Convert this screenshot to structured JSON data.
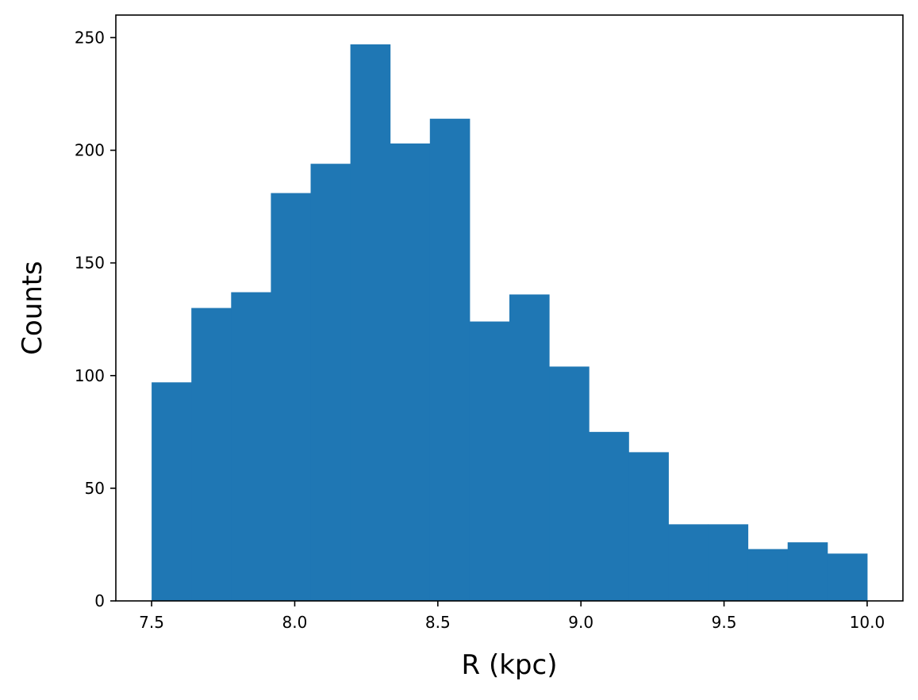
{
  "chart_data": {
    "type": "bar",
    "subtype": "histogram",
    "title": "",
    "xlabel": "R (kpc)",
    "ylabel": "Counts",
    "bin_edges": [
      7.5,
      7.6389,
      7.7778,
      7.9167,
      8.0556,
      8.1944,
      8.3333,
      8.4722,
      8.6111,
      8.75,
      8.8889,
      9.0278,
      9.1667,
      9.3056,
      9.4444,
      9.5833,
      9.7222,
      9.8611,
      10.0
    ],
    "values": [
      97,
      130,
      137,
      181,
      194,
      247,
      203,
      214,
      124,
      136,
      104,
      75,
      66,
      34,
      34,
      23,
      26,
      21
    ],
    "xlim": [
      7.375,
      10.125
    ],
    "ylim": [
      0,
      260
    ],
    "x_ticks": [
      7.5,
      8.0,
      8.5,
      9.0,
      9.5,
      10.0
    ],
    "x_tick_labels": [
      "7.5",
      "8.0",
      "8.5",
      "9.0",
      "9.5",
      "10.0"
    ],
    "y_ticks": [
      0,
      50,
      100,
      150,
      200,
      250
    ],
    "y_tick_labels": [
      "0",
      "50",
      "100",
      "150",
      "200",
      "250"
    ],
    "bar_color": "#1f77b4",
    "grid": false,
    "legend": false
  }
}
